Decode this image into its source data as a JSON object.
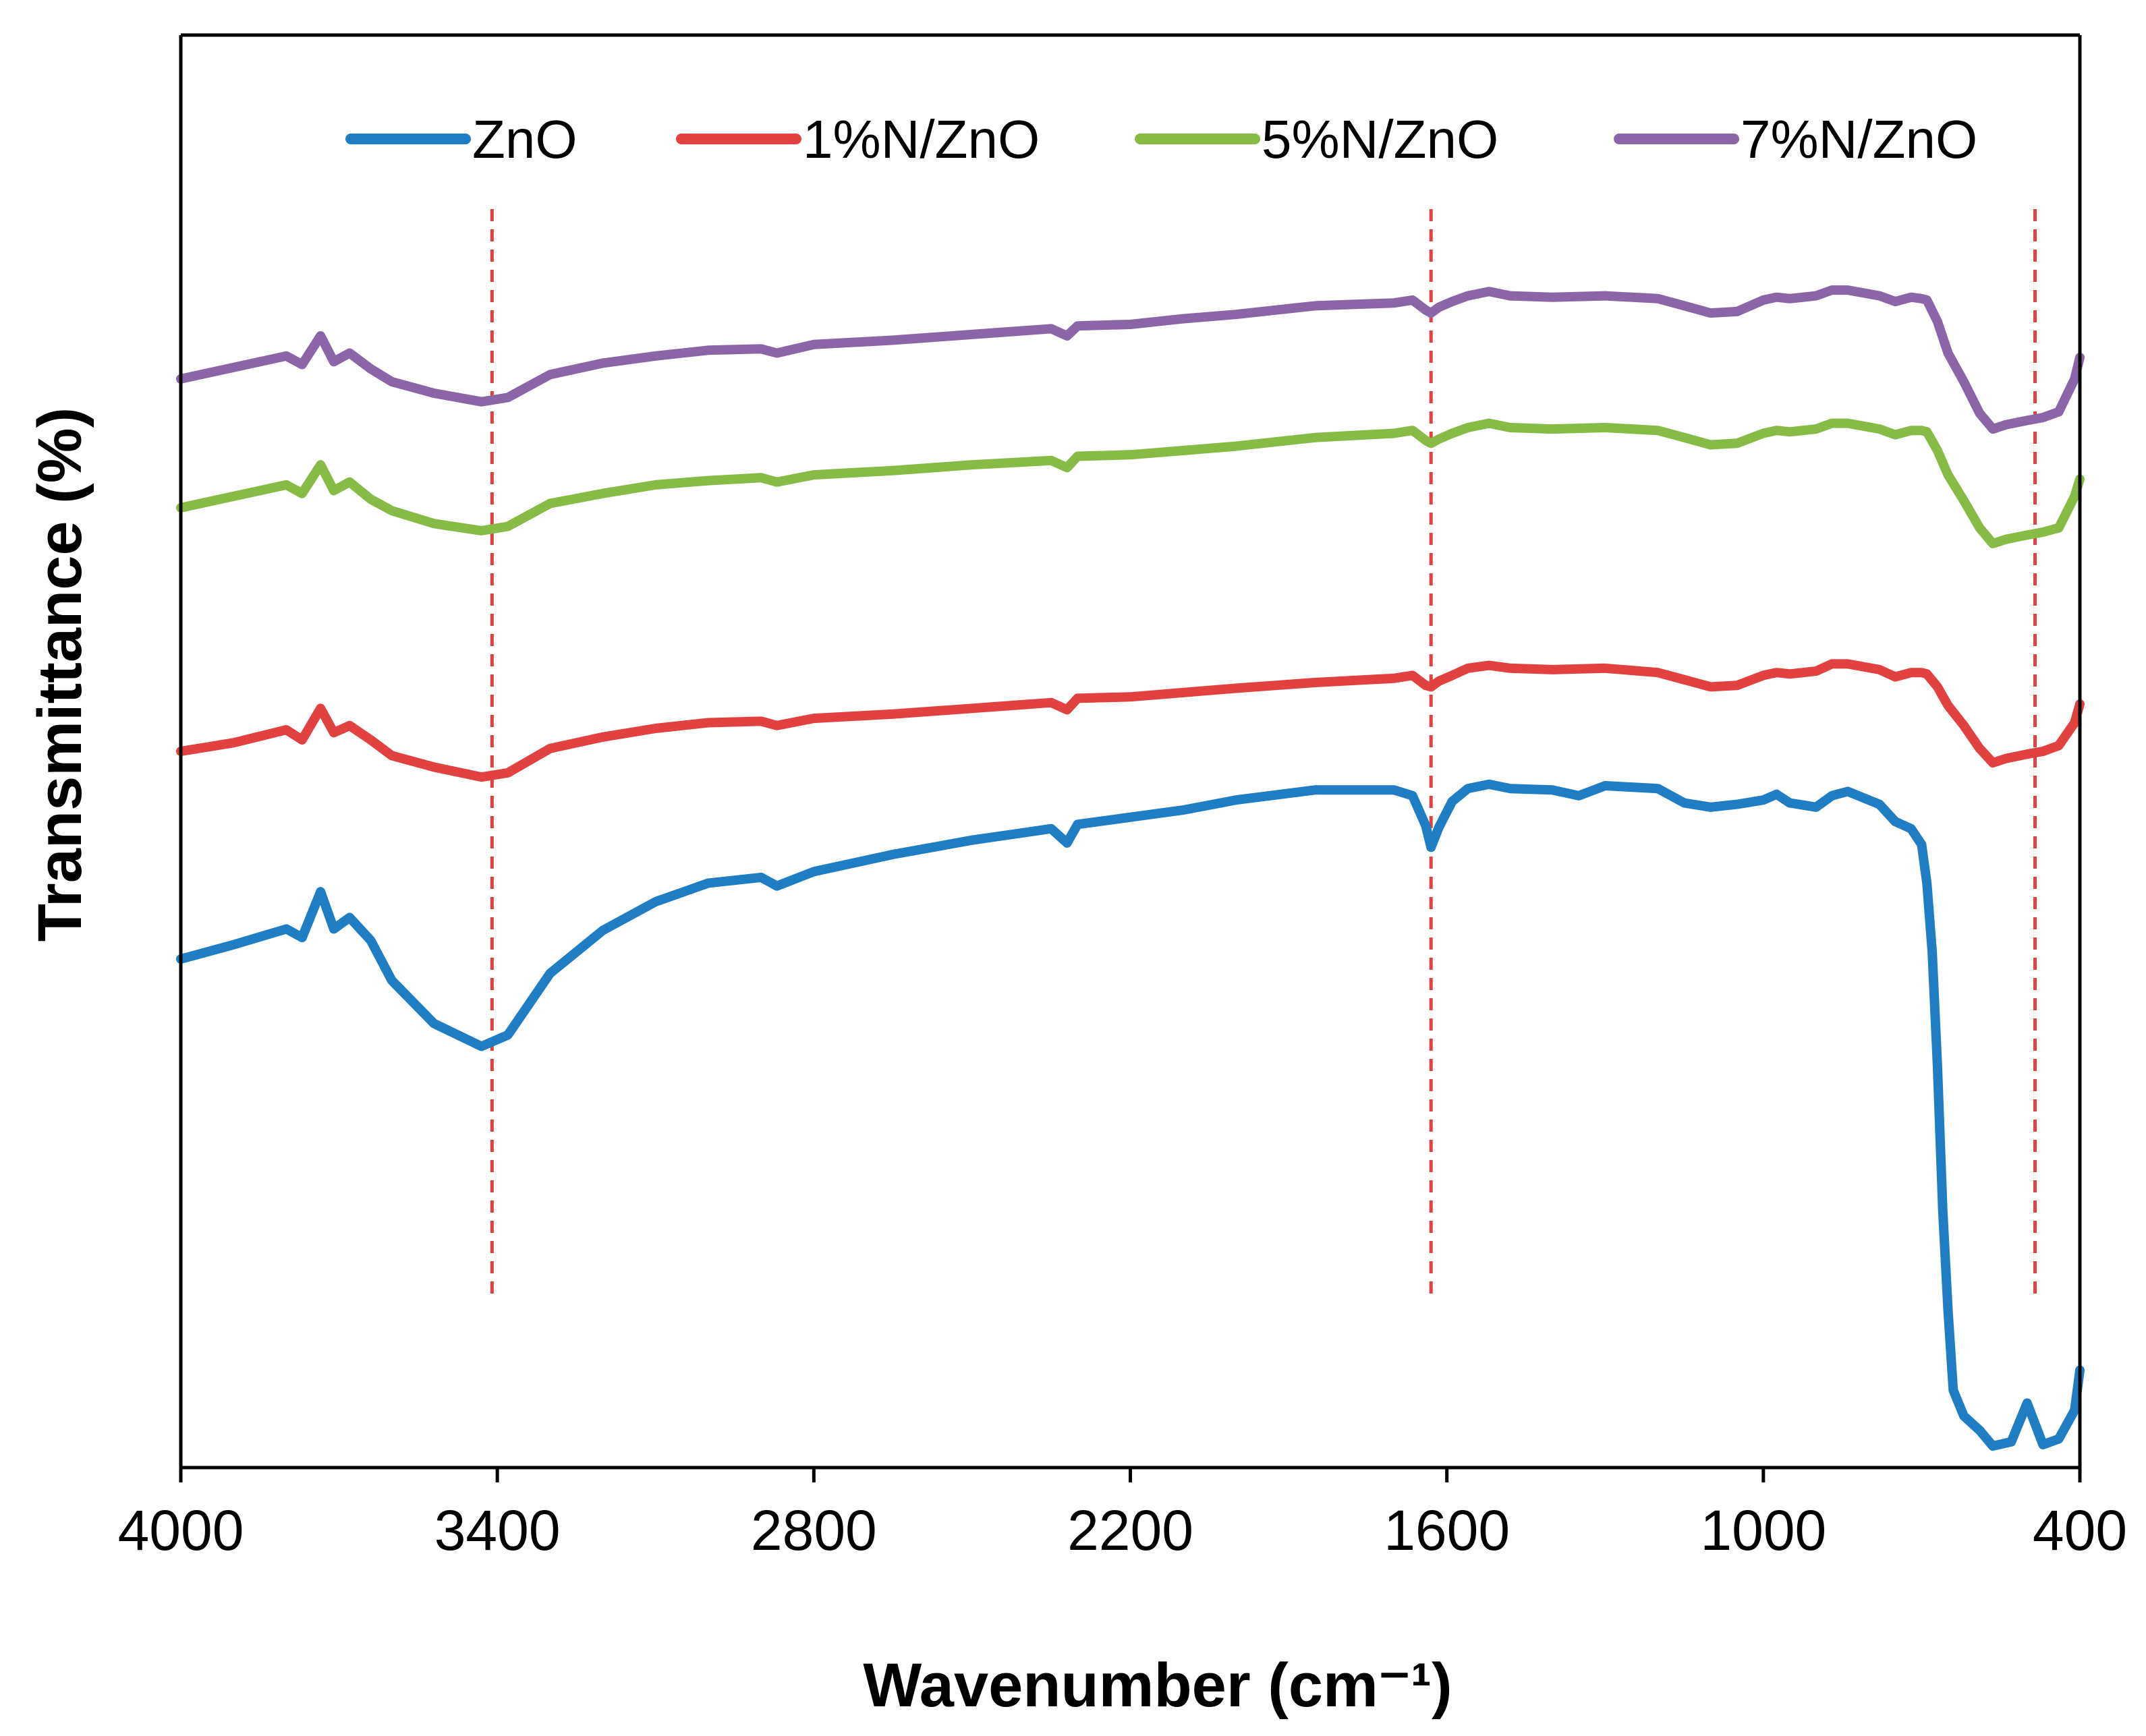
{
  "chart_data": {
    "type": "line",
    "title": "",
    "xlabel": "Wavenumber (cm⁻¹)",
    "ylabel": "Transmittance (%)",
    "xlim": [
      4000,
      400
    ],
    "x_reversed": true,
    "ylim": [
      0,
      100
    ],
    "y_ticks_shown": false,
    "x_ticks": [
      4000,
      3400,
      2800,
      2200,
      1600,
      1000,
      400
    ],
    "x_tick_labels": [
      "4000",
      "3400",
      "2800",
      "2200",
      "1600",
      "1000",
      "400"
    ],
    "legend_position": "top",
    "series": [
      {
        "name": "ZnO",
        "color": "#1f7ec3",
        "points": [
          [
            4000,
            35.5
          ],
          [
            3900,
            36.5
          ],
          [
            3800,
            37.6
          ],
          [
            3770,
            37.0
          ],
          [
            3735,
            40.2
          ],
          [
            3710,
            37.6
          ],
          [
            3680,
            38.4
          ],
          [
            3640,
            36.8
          ],
          [
            3600,
            34.0
          ],
          [
            3520,
            31.0
          ],
          [
            3430,
            29.4
          ],
          [
            3380,
            30.2
          ],
          [
            3300,
            34.5
          ],
          [
            3200,
            37.5
          ],
          [
            3100,
            39.5
          ],
          [
            3000,
            40.8
          ],
          [
            2900,
            41.2
          ],
          [
            2870,
            40.6
          ],
          [
            2800,
            41.6
          ],
          [
            2650,
            42.8
          ],
          [
            2500,
            43.8
          ],
          [
            2350,
            44.6
          ],
          [
            2320,
            43.6
          ],
          [
            2300,
            44.9
          ],
          [
            2200,
            45.4
          ],
          [
            2100,
            45.9
          ],
          [
            2000,
            46.6
          ],
          [
            1850,
            47.3
          ],
          [
            1700,
            47.3
          ],
          [
            1665,
            46.9
          ],
          [
            1640,
            44.8
          ],
          [
            1630,
            43.3
          ],
          [
            1615,
            44.7
          ],
          [
            1590,
            46.5
          ],
          [
            1560,
            47.4
          ],
          [
            1520,
            47.7
          ],
          [
            1480,
            47.4
          ],
          [
            1400,
            47.3
          ],
          [
            1350,
            46.9
          ],
          [
            1300,
            47.6
          ],
          [
            1200,
            47.4
          ],
          [
            1150,
            46.4
          ],
          [
            1100,
            46.1
          ],
          [
            1050,
            46.3
          ],
          [
            1000,
            46.6
          ],
          [
            975,
            47.0
          ],
          [
            950,
            46.4
          ],
          [
            900,
            46.1
          ],
          [
            870,
            46.9
          ],
          [
            840,
            47.2
          ],
          [
            780,
            46.3
          ],
          [
            750,
            45.1
          ],
          [
            720,
            44.6
          ],
          [
            700,
            43.5
          ],
          [
            690,
            40.8
          ],
          [
            680,
            36.0
          ],
          [
            670,
            28.0
          ],
          [
            660,
            18.0
          ],
          [
            650,
            11.0
          ],
          [
            640,
            5.4
          ],
          [
            620,
            3.6
          ],
          [
            590,
            2.6
          ],
          [
            565,
            1.5
          ],
          [
            530,
            1.8
          ],
          [
            500,
            4.5
          ],
          [
            470,
            1.6
          ],
          [
            440,
            2.0
          ],
          [
            410,
            4.0
          ],
          [
            400,
            6.8
          ]
        ]
      },
      {
        "name": "1%N/ZnO",
        "color": "#e2423f",
        "points": [
          [
            4000,
            50.0
          ],
          [
            3900,
            50.6
          ],
          [
            3800,
            51.5
          ],
          [
            3770,
            50.8
          ],
          [
            3735,
            53.0
          ],
          [
            3710,
            51.3
          ],
          [
            3680,
            51.8
          ],
          [
            3640,
            50.8
          ],
          [
            3600,
            49.7
          ],
          [
            3520,
            48.9
          ],
          [
            3430,
            48.2
          ],
          [
            3380,
            48.5
          ],
          [
            3300,
            50.2
          ],
          [
            3200,
            51.0
          ],
          [
            3100,
            51.6
          ],
          [
            3000,
            52.0
          ],
          [
            2900,
            52.1
          ],
          [
            2870,
            51.8
          ],
          [
            2800,
            52.3
          ],
          [
            2650,
            52.6
          ],
          [
            2500,
            53.0
          ],
          [
            2350,
            53.4
          ],
          [
            2320,
            52.9
          ],
          [
            2300,
            53.7
          ],
          [
            2200,
            53.8
          ],
          [
            2100,
            54.1
          ],
          [
            2000,
            54.4
          ],
          [
            1850,
            54.8
          ],
          [
            1700,
            55.1
          ],
          [
            1665,
            55.3
          ],
          [
            1640,
            54.6
          ],
          [
            1630,
            54.5
          ],
          [
            1615,
            54.9
          ],
          [
            1590,
            55.3
          ],
          [
            1560,
            55.8
          ],
          [
            1520,
            56.0
          ],
          [
            1480,
            55.8
          ],
          [
            1400,
            55.7
          ],
          [
            1300,
            55.8
          ],
          [
            1200,
            55.5
          ],
          [
            1150,
            55.0
          ],
          [
            1100,
            54.5
          ],
          [
            1050,
            54.6
          ],
          [
            1000,
            55.3
          ],
          [
            975,
            55.5
          ],
          [
            950,
            55.4
          ],
          [
            900,
            55.6
          ],
          [
            870,
            56.1
          ],
          [
            840,
            56.1
          ],
          [
            780,
            55.7
          ],
          [
            750,
            55.2
          ],
          [
            720,
            55.5
          ],
          [
            700,
            55.5
          ],
          [
            690,
            55.4
          ],
          [
            670,
            54.5
          ],
          [
            650,
            53.2
          ],
          [
            620,
            51.8
          ],
          [
            590,
            50.2
          ],
          [
            565,
            49.2
          ],
          [
            540,
            49.5
          ],
          [
            500,
            49.8
          ],
          [
            470,
            50.0
          ],
          [
            440,
            50.4
          ],
          [
            410,
            52.0
          ],
          [
            400,
            53.3
          ]
        ]
      },
      {
        "name": "5%N/ZnO",
        "color": "#86bb45",
        "points": [
          [
            4000,
            67.0
          ],
          [
            3900,
            67.8
          ],
          [
            3800,
            68.6
          ],
          [
            3770,
            68.0
          ],
          [
            3735,
            70.0
          ],
          [
            3710,
            68.2
          ],
          [
            3680,
            68.8
          ],
          [
            3640,
            67.6
          ],
          [
            3600,
            66.8
          ],
          [
            3520,
            65.9
          ],
          [
            3430,
            65.4
          ],
          [
            3380,
            65.7
          ],
          [
            3300,
            67.3
          ],
          [
            3200,
            68.0
          ],
          [
            3100,
            68.6
          ],
          [
            3000,
            68.9
          ],
          [
            2900,
            69.1
          ],
          [
            2870,
            68.8
          ],
          [
            2800,
            69.3
          ],
          [
            2650,
            69.6
          ],
          [
            2500,
            70.0
          ],
          [
            2350,
            70.3
          ],
          [
            2320,
            69.8
          ],
          [
            2300,
            70.6
          ],
          [
            2200,
            70.7
          ],
          [
            2100,
            71.0
          ],
          [
            2000,
            71.3
          ],
          [
            1850,
            71.9
          ],
          [
            1700,
            72.2
          ],
          [
            1665,
            72.4
          ],
          [
            1640,
            71.7
          ],
          [
            1630,
            71.5
          ],
          [
            1615,
            71.8
          ],
          [
            1590,
            72.2
          ],
          [
            1560,
            72.6
          ],
          [
            1520,
            72.9
          ],
          [
            1480,
            72.6
          ],
          [
            1400,
            72.5
          ],
          [
            1300,
            72.6
          ],
          [
            1200,
            72.4
          ],
          [
            1150,
            71.9
          ],
          [
            1100,
            71.4
          ],
          [
            1050,
            71.5
          ],
          [
            1000,
            72.2
          ],
          [
            975,
            72.4
          ],
          [
            950,
            72.3
          ],
          [
            900,
            72.5
          ],
          [
            870,
            72.9
          ],
          [
            840,
            72.9
          ],
          [
            780,
            72.5
          ],
          [
            750,
            72.1
          ],
          [
            720,
            72.4
          ],
          [
            700,
            72.4
          ],
          [
            690,
            72.3
          ],
          [
            670,
            71.0
          ],
          [
            650,
            69.3
          ],
          [
            620,
            67.5
          ],
          [
            590,
            65.6
          ],
          [
            565,
            64.5
          ],
          [
            540,
            64.8
          ],
          [
            500,
            65.1
          ],
          [
            470,
            65.3
          ],
          [
            440,
            65.6
          ],
          [
            410,
            67.8
          ],
          [
            400,
            69.0
          ]
        ]
      },
      {
        "name": "7%N/ZnO",
        "color": "#8a66a8",
        "points": [
          [
            4000,
            76.0
          ],
          [
            3900,
            76.8
          ],
          [
            3800,
            77.6
          ],
          [
            3770,
            77.0
          ],
          [
            3735,
            79.0
          ],
          [
            3710,
            77.2
          ],
          [
            3680,
            77.8
          ],
          [
            3640,
            76.7
          ],
          [
            3600,
            75.8
          ],
          [
            3520,
            75.0
          ],
          [
            3430,
            74.4
          ],
          [
            3380,
            74.7
          ],
          [
            3300,
            76.3
          ],
          [
            3200,
            77.1
          ],
          [
            3100,
            77.6
          ],
          [
            3000,
            78.0
          ],
          [
            2900,
            78.1
          ],
          [
            2870,
            77.8
          ],
          [
            2800,
            78.4
          ],
          [
            2650,
            78.7
          ],
          [
            2500,
            79.1
          ],
          [
            2350,
            79.5
          ],
          [
            2320,
            79.0
          ],
          [
            2300,
            79.7
          ],
          [
            2200,
            79.8
          ],
          [
            2100,
            80.2
          ],
          [
            2000,
            80.5
          ],
          [
            1850,
            81.1
          ],
          [
            1700,
            81.3
          ],
          [
            1665,
            81.5
          ],
          [
            1640,
            80.8
          ],
          [
            1630,
            80.6
          ],
          [
            1615,
            81.0
          ],
          [
            1590,
            81.4
          ],
          [
            1560,
            81.8
          ],
          [
            1520,
            82.1
          ],
          [
            1480,
            81.8
          ],
          [
            1400,
            81.7
          ],
          [
            1300,
            81.8
          ],
          [
            1200,
            81.6
          ],
          [
            1150,
            81.1
          ],
          [
            1100,
            80.6
          ],
          [
            1050,
            80.7
          ],
          [
            1000,
            81.5
          ],
          [
            975,
            81.7
          ],
          [
            950,
            81.6
          ],
          [
            900,
            81.8
          ],
          [
            870,
            82.2
          ],
          [
            840,
            82.2
          ],
          [
            780,
            81.8
          ],
          [
            750,
            81.4
          ],
          [
            720,
            81.7
          ],
          [
            700,
            81.6
          ],
          [
            690,
            81.5
          ],
          [
            670,
            80.0
          ],
          [
            650,
            77.8
          ],
          [
            620,
            75.8
          ],
          [
            590,
            73.6
          ],
          [
            565,
            72.5
          ],
          [
            540,
            72.8
          ],
          [
            500,
            73.1
          ],
          [
            470,
            73.3
          ],
          [
            440,
            73.7
          ],
          [
            410,
            76.0
          ],
          [
            400,
            77.5
          ]
        ]
      }
    ],
    "reference_lines": [
      {
        "x": 3410,
        "color": "#e2423f",
        "style": "dashed"
      },
      {
        "x": 1630,
        "color": "#e2423f",
        "style": "dashed"
      },
      {
        "x": 485,
        "color": "#e2423f",
        "style": "dashed"
      }
    ]
  }
}
